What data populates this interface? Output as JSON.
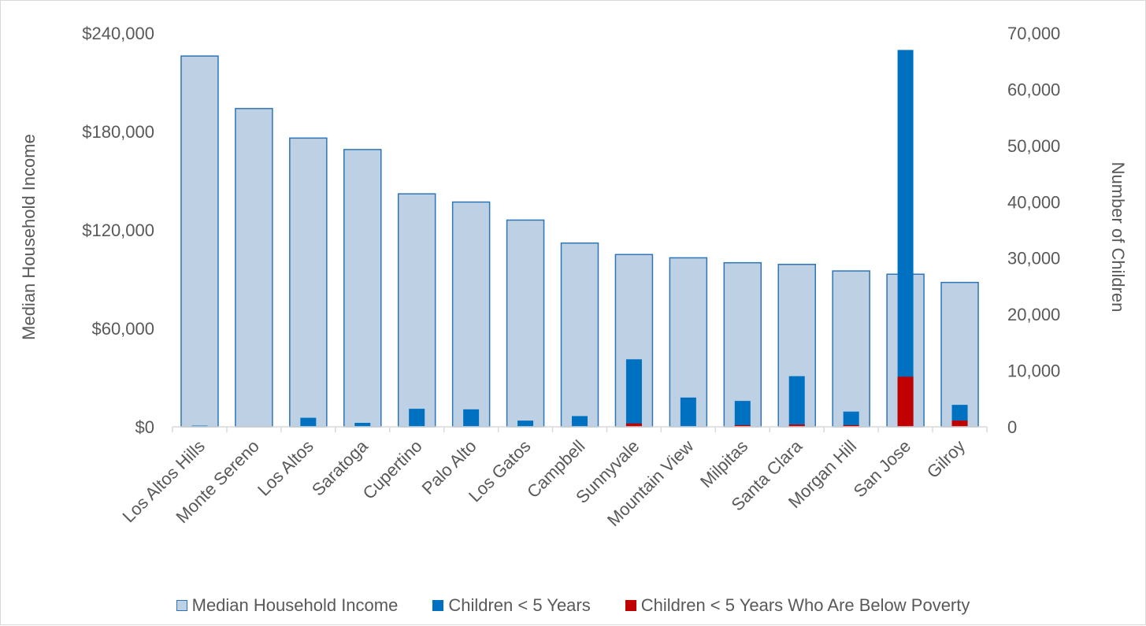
{
  "chart_data": {
    "type": "bar",
    "categories": [
      "Los Altos Hills",
      "Monte Sereno",
      "Los Altos",
      "Saratoga",
      "Cupertino",
      "Palo Alto",
      "Los Gatos",
      "Campbell",
      "Sunnyvale",
      "Mountain View",
      "Milpitas",
      "Santa Clara",
      "Morgan Hill",
      "San Jose",
      "Gilroy"
    ],
    "primary_axis": {
      "title": "Median Household Income",
      "min": 0,
      "max": 240000,
      "step": 60000,
      "tick_labels": [
        "$0",
        "$60,000",
        "$120,000",
        "$180,000",
        "$240,000"
      ]
    },
    "secondary_axis": {
      "title": "Number of Children",
      "min": 0,
      "max": 70000,
      "step": 10000,
      "tick_labels": [
        "0",
        "10,000",
        "20,000",
        "30,000",
        "40,000",
        "50,000",
        "60,000",
        "70,000"
      ]
    },
    "series": [
      {
        "name": "Median Household Income",
        "axis": "primary",
        "color": "#bdd0e4",
        "stroke": "#2e75b6",
        "values": [
          226000,
          194000,
          176000,
          169000,
          142000,
          137000,
          126000,
          112000,
          105000,
          103000,
          100000,
          99000,
          95000,
          93000,
          88000
        ]
      },
      {
        "name": "Children < 5 Years",
        "axis": "secondary",
        "color": "#0070c0",
        "values": [
          200,
          0,
          1600,
          700,
          3200,
          3100,
          1100,
          1900,
          12000,
          5200,
          4600,
          9000,
          2700,
          67000,
          3900
        ]
      },
      {
        "name": "Children < 5 Years Who Are Below Poverty",
        "axis": "secondary",
        "color": "#c00000",
        "values": [
          0,
          0,
          0,
          0,
          0,
          0,
          0,
          0,
          600,
          0,
          300,
          400,
          300,
          8900,
          1100
        ]
      }
    ],
    "grid": false,
    "legend_position": "bottom"
  }
}
